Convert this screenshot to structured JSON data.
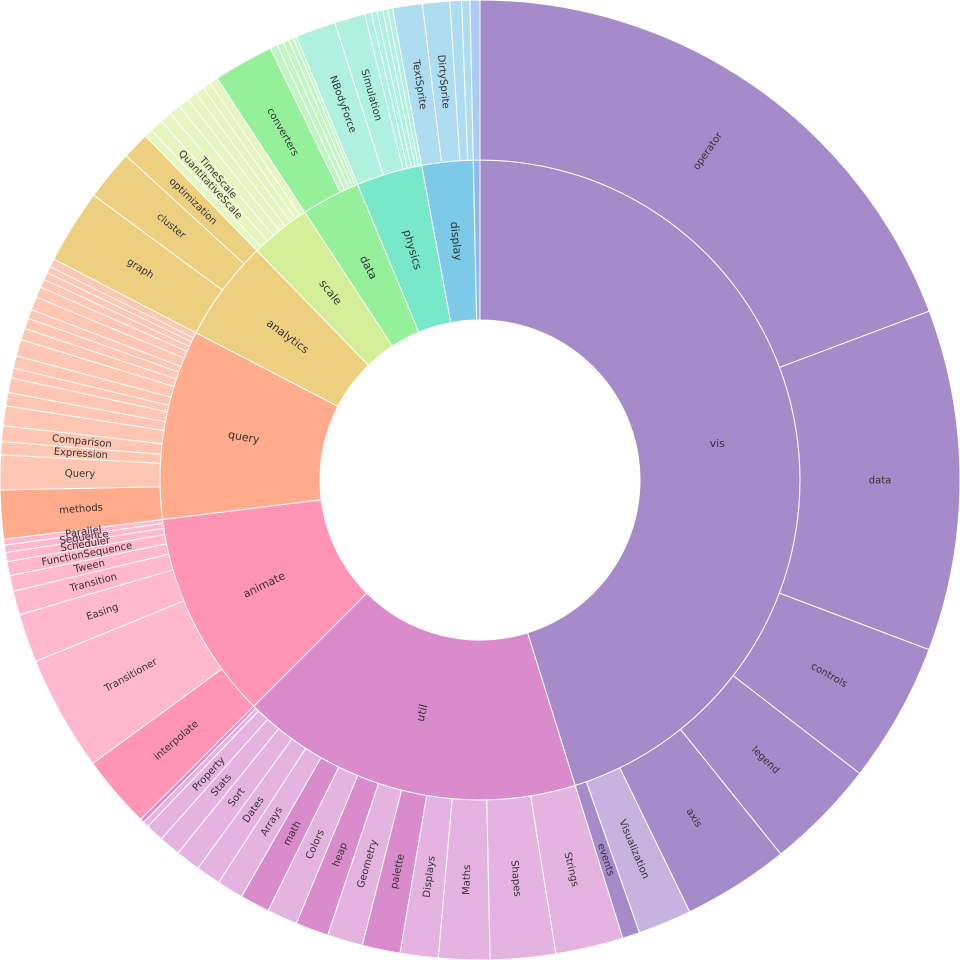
{
  "chart_data": {
    "type": "sunburst",
    "children": [
      {
        "name": "vis",
        "value": 162.7,
        "color": "#a68bca",
        "children": [
          {
            "name": "operator",
            "value": 69.4,
            "color": "#a68bca"
          },
          {
            "name": "data",
            "value": 41.3,
            "color": "#a68bca"
          },
          {
            "name": "controls",
            "value": 17,
            "color": "#a68bca"
          },
          {
            "name": "legend",
            "value": 13.5,
            "color": "#a68bca"
          },
          {
            "name": "axis",
            "value": 12.9,
            "color": "#a68bca"
          },
          {
            "name": "Visualization",
            "value": 6.5,
            "color": "#c6b3df"
          },
          {
            "name": "events",
            "value": 2.1,
            "color": "#a68bca"
          }
        ]
      },
      {
        "name": "util",
        "value": 62.3,
        "color": "#d98bcb",
        "children": [
          {
            "name": "Strings",
            "value": 8.2,
            "color": "#e5b3df"
          },
          {
            "name": "Shapes",
            "value": 7.9,
            "color": "#e5b3df"
          },
          {
            "name": "Maths",
            "value": 6.2,
            "color": "#e5b3df"
          },
          {
            "name": "Displays",
            "value": 4.6,
            "color": "#e5b3df"
          },
          {
            "name": "palette",
            "value": 4.6,
            "color": "#d98bcb"
          },
          {
            "name": "Geometry",
            "value": 4.3,
            "color": "#e5b3df"
          },
          {
            "name": "heap",
            "value": 4.0,
            "color": "#d98bcb"
          },
          {
            "name": "Colors",
            "value": 3.7,
            "color": "#e5b3df"
          },
          {
            "name": "math",
            "value": 3.6,
            "color": "#d98bcb"
          },
          {
            "name": "Arrays",
            "value": 3.2,
            "color": "#e5b3df"
          },
          {
            "name": "Dates",
            "value": 3.0,
            "color": "#e5b3df"
          },
          {
            "name": "Sort",
            "value": 3.0,
            "color": "#e5b3df"
          },
          {
            "name": "Stats",
            "value": 2.6,
            "color": "#e5b3df"
          },
          {
            "name": "Property",
            "value": 2.2,
            "color": "#e5b3df"
          },
          {
            "name": null,
            "value": 0.7,
            "color": "#e5b3df"
          },
          {
            "name": null,
            "value": 0.5,
            "color": "#d98bcb"
          }
        ]
      },
      {
        "name": "animate",
        "value": 37.9,
        "color": "#ff94b4",
        "children": [
          {
            "name": "interpolate",
            "value": 8.8,
            "color": "#ff94b4"
          },
          {
            "name": "Transitioner",
            "value": 14,
            "color": "#ffb8cd"
          },
          {
            "name": "Easing",
            "value": 5.9,
            "color": "#ffb8cd"
          },
          {
            "name": "Transition",
            "value": 2.9,
            "color": "#ffb8cd"
          },
          {
            "name": "Tween",
            "value": 1.9,
            "color": "#ffb8cd"
          },
          {
            "name": "FunctionSequence",
            "value": 1.7,
            "color": "#ffb8cd"
          },
          {
            "name": "Scheduler",
            "value": 1.1,
            "color": "#ffb8cd"
          },
          {
            "name": "Sequence",
            "value": 0.9,
            "color": "#ffb8cd"
          },
          {
            "name": "Parallel",
            "value": 0.7,
            "color": "#ffb8cd"
          }
        ]
      },
      {
        "name": "query",
        "value": 34.5,
        "color": "#ffab8c",
        "children": [
          {
            "name": "methods",
            "value": 5.9,
            "color": "#ffab8c"
          },
          {
            "name": "Query",
            "value": 4.2,
            "color": "#ffc6b3"
          },
          {
            "name": "Expression",
            "value": 1.6,
            "color": "#ffc6b3"
          },
          {
            "name": "Comparison",
            "value": 1.9,
            "color": "#ffc6b3"
          },
          {
            "name": null,
            "value": 2.4,
            "color": "#ffc6b3"
          },
          {
            "name": null,
            "value": 1.6,
            "color": "#ffc6b3"
          },
          {
            "name": null,
            "value": 1.8,
            "color": "#ffc6b3"
          },
          {
            "name": null,
            "value": 1.2,
            "color": "#ffc6b3"
          },
          {
            "name": null,
            "value": 1.5,
            "color": "#ffc6b3"
          },
          {
            "name": null,
            "value": 2.0,
            "color": "#ffc6b3"
          },
          {
            "name": null,
            "value": 1.4,
            "color": "#ffc6b3"
          },
          {
            "name": null,
            "value": 1.3,
            "color": "#ffc6b3"
          },
          {
            "name": null,
            "value": 1.1,
            "color": "#ffc6b3"
          },
          {
            "name": null,
            "value": 1.6,
            "color": "#ffc6b3"
          },
          {
            "name": null,
            "value": 1.3,
            "color": "#ffc6b3"
          },
          {
            "name": null,
            "value": 1.0,
            "color": "#ffc6b3"
          },
          {
            "name": null,
            "value": 0.9,
            "color": "#ffc6b3"
          },
          {
            "name": null,
            "value": 0.8,
            "color": "#ffc6b3"
          },
          {
            "name": null,
            "value": 1.0,
            "color": "#ffc6b3"
          }
        ]
      },
      {
        "name": "analytics",
        "value": 18.4,
        "color": "#ecd080",
        "children": [
          {
            "name": "graph",
            "value": 9,
            "color": "#ecd080"
          },
          {
            "name": "cluster",
            "value": 6.1,
            "color": "#ecd080"
          },
          {
            "name": "optimization",
            "value": 3.3,
            "color": "#ecd080"
          }
        ]
      },
      {
        "name": "scale",
        "value": 11,
        "color": "#d5ef98",
        "children": [
          {
            "name": null,
            "value": 1.0,
            "color": "#e6f6c0"
          },
          {
            "name": "QuantitativeScale",
            "value": 1.6,
            "color": "#e6f6c0"
          },
          {
            "name": "TimeScale",
            "value": 1.4,
            "color": "#e6f6c0"
          },
          {
            "name": null,
            "value": 1.4,
            "color": "#e6f6c0"
          },
          {
            "name": null,
            "value": 1.3,
            "color": "#e6f6c0"
          },
          {
            "name": null,
            "value": 1.2,
            "color": "#e6f6c0"
          },
          {
            "name": null,
            "value": 1.1,
            "color": "#e6f6c0"
          },
          {
            "name": null,
            "value": 1.0,
            "color": "#e6f6c0"
          },
          {
            "name": null,
            "value": 1.0,
            "color": "#e6f6c0"
          }
        ]
      },
      {
        "name": "data",
        "value": 10.7,
        "color": "#95f09a",
        "children": [
          {
            "name": "converters",
            "value": 7.3,
            "color": "#95f09a"
          },
          {
            "name": null,
            "value": 0.9,
            "color": "#c1f5c3"
          },
          {
            "name": null,
            "value": 0.8,
            "color": "#c1f5c3"
          },
          {
            "name": null,
            "value": 0.7,
            "color": "#c1f5c3"
          },
          {
            "name": null,
            "value": 0.6,
            "color": "#c1f5c3"
          },
          {
            "name": null,
            "value": 0.4,
            "color": "#c1f5c3"
          }
        ]
      },
      {
        "name": "physics",
        "value": 12,
        "color": "#78e8c8",
        "children": [
          {
            "name": "NBodyForce",
            "value": 4.9,
            "color": "#aef1dd"
          },
          {
            "name": "Simulation",
            "value": 3.7,
            "color": "#aef1dd"
          },
          {
            "name": null,
            "value": 0.8,
            "color": "#aef1dd"
          },
          {
            "name": null,
            "value": 0.7,
            "color": "#aef1dd"
          },
          {
            "name": null,
            "value": 0.7,
            "color": "#aef1dd"
          },
          {
            "name": null,
            "value": 0.6,
            "color": "#aef1dd"
          },
          {
            "name": null,
            "value": 0.6,
            "color": "#aef1dd"
          }
        ]
      },
      {
        "name": "display",
        "value": 9.3,
        "color": "#7dc9e8",
        "children": [
          {
            "name": "TextSprite",
            "value": 3.6,
            "color": "#aedcf0"
          },
          {
            "name": "DirtySprite",
            "value": 3.3,
            "color": "#aedcf0"
          },
          {
            "name": null,
            "value": 1.4,
            "color": "#aedcf0"
          },
          {
            "name": null,
            "value": 1.0,
            "color": "#aedcf0"
          }
        ]
      },
      {
        "name": null,
        "value": 1.2,
        "color": "#8db8f0",
        "children": [
          {
            "name": null,
            "value": 1.2,
            "color": "#aacbf5"
          }
        ]
      }
    ]
  }
}
